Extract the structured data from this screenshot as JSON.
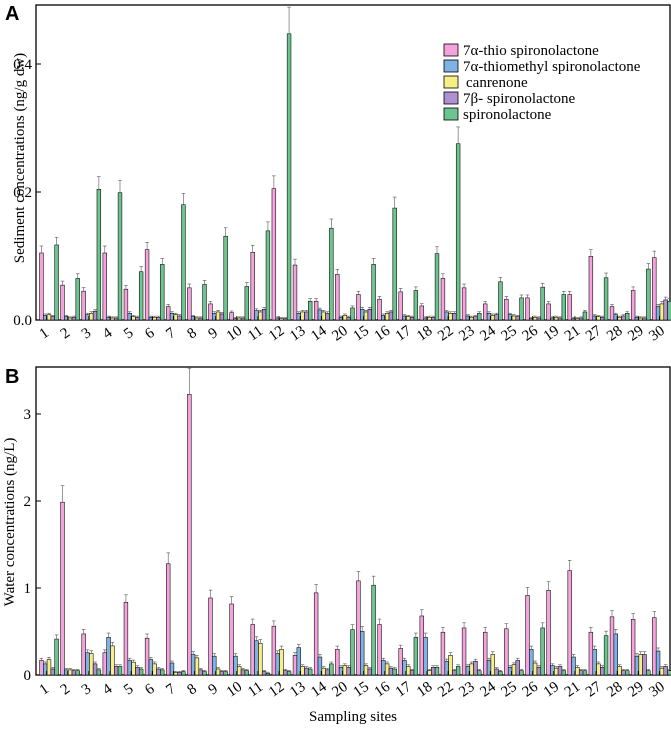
{
  "chart_data": [
    {
      "panel_label": "A",
      "type": "bar",
      "ylabel": "Sediment concentrations (ng/g dw)",
      "xlabel": "",
      "ylim": [
        0,
        0.47
      ],
      "yticks": [
        0.0,
        0.2,
        0.4
      ],
      "ytick_labels": [
        "0.0",
        "0.2",
        "0.4"
      ],
      "grid": false,
      "legend_position": "top-right",
      "categories": [
        "1",
        "2",
        "3",
        "4",
        "5",
        "6",
        "7",
        "8",
        "9",
        "10",
        "11",
        "12",
        "13",
        "14",
        "20",
        "15",
        "16",
        "17",
        "18",
        "22",
        "23",
        "24",
        "25",
        "26",
        "19",
        "21",
        "27",
        "28",
        "29",
        "30"
      ],
      "series": [
        {
          "name": "7α-thio spironolactone",
          "color": "#f4a3dd",
          "values": [
            0.1,
            0.052,
            0.043,
            0.1,
            0.046,
            0.105,
            0.02,
            0.048,
            0.024,
            0.011,
            0.101,
            0.196,
            0.082,
            0.028,
            0.068,
            0.038,
            0.031,
            0.042,
            0.021,
            0.062,
            0.048,
            0.024,
            0.031,
            0.033,
            0.024,
            0.038,
            0.095,
            0.02,
            0.044,
            0.093
          ]
        },
        {
          "name": "7α-thiomethyl spironolactone",
          "color": "#7fb2e5",
          "values": [
            0.007,
            0.005,
            0.008,
            0.004,
            0.01,
            0.004,
            0.01,
            0.005,
            0.01,
            0.002,
            0.014,
            0.003,
            0.01,
            0.015,
            0.004,
            0.016,
            0.007,
            0.006,
            0.003,
            0.012,
            0.006,
            0.01,
            0.008,
            0.002,
            0.003,
            0.002,
            0.006,
            0.008,
            0.004,
            0.02
          ]
        },
        {
          "name": "canrenone",
          "color": "#f7ee86",
          "values": [
            0.008,
            0.003,
            0.01,
            0.003,
            0.005,
            0.004,
            0.008,
            0.003,
            0.012,
            0.003,
            0.012,
            0.002,
            0.012,
            0.012,
            0.007,
            0.012,
            0.01,
            0.005,
            0.004,
            0.01,
            0.004,
            0.007,
            0.006,
            0.004,
            0.004,
            0.002,
            0.005,
            0.004,
            0.003,
            0.024
          ]
        },
        {
          "name": "7β- spironolactone",
          "color": "#b190d2",
          "values": [
            0.005,
            0.004,
            0.013,
            0.003,
            0.004,
            0.004,
            0.006,
            0.003,
            0.009,
            0.003,
            0.016,
            0.002,
            0.012,
            0.01,
            0.004,
            0.016,
            0.012,
            0.004,
            0.004,
            0.01,
            0.005,
            0.008,
            0.005,
            0.003,
            0.003,
            0.003,
            0.004,
            0.006,
            0.003,
            0.03
          ]
        },
        {
          "name": "spironolactone",
          "color": "#6ec48e",
          "values": [
            0.112,
            0.062,
            0.195,
            0.19,
            0.072,
            0.083,
            0.172,
            0.053,
            0.125,
            0.05,
            0.133,
            0.427,
            0.028,
            0.137,
            0.018,
            0.083,
            0.167,
            0.044,
            0.099,
            0.263,
            0.01,
            0.057,
            0.033,
            0.049,
            0.038,
            0.012,
            0.063,
            0.01,
            0.076,
            0.028
          ]
        }
      ]
    },
    {
      "panel_label": "B",
      "type": "bar",
      "ylabel": "Water concentrations (ng/L)",
      "xlabel": "Sampling sites",
      "ylim": [
        0,
        3.6
      ],
      "yticks": [
        0,
        1,
        2,
        3
      ],
      "ytick_labels": [
        "0",
        "1",
        "2",
        "3"
      ],
      "grid": false,
      "categories": [
        "1",
        "2",
        "3",
        "4",
        "5",
        "6",
        "7",
        "8",
        "9",
        "10",
        "11",
        "12",
        "13",
        "14",
        "20",
        "15",
        "16",
        "17",
        "18",
        "22",
        "23",
        "24",
        "25",
        "26",
        "19",
        "21",
        "27",
        "28",
        "29",
        "30"
      ],
      "series": [
        {
          "name": "7α-thio spironolactone",
          "color": "#f4a3dd",
          "values": [
            0.17,
            2.02,
            0.48,
            0.26,
            0.85,
            0.43,
            1.3,
            3.28,
            0.9,
            0.83,
            0.59,
            0.57,
            0.23,
            0.96,
            0.3,
            1.1,
            0.59,
            0.31,
            0.69,
            0.5,
            0.55,
            0.5,
            0.54,
            0.93,
            0.99,
            1.22,
            0.5,
            0.68,
            0.65,
            0.67
          ]
        },
        {
          "name": "7α-thiomethyl spironolactone",
          "color": "#7fb2e5",
          "values": [
            0.13,
            0.06,
            0.26,
            0.44,
            0.17,
            0.18,
            0.14,
            0.24,
            0.22,
            0.22,
            0.4,
            0.25,
            0.32,
            0.21,
            0.09,
            0.51,
            0.17,
            0.17,
            0.44,
            0.16,
            0.1,
            0.17,
            0.09,
            0.3,
            0.11,
            0.21,
            0.3,
            0.48,
            0.22,
            0.28
          ]
        },
        {
          "name": "canrenone",
          "color": "#f7ee86",
          "values": [
            0.18,
            0.06,
            0.25,
            0.34,
            0.15,
            0.13,
            0.03,
            0.2,
            0.07,
            0.1,
            0.37,
            0.3,
            0.1,
            0.08,
            0.11,
            0.11,
            0.13,
            0.1,
            0.05,
            0.23,
            0.13,
            0.24,
            0.12,
            0.14,
            0.08,
            0.09,
            0.13,
            0.1,
            0.24,
            0.08
          ]
        },
        {
          "name": "7β- spironolactone",
          "color": "#b190d2",
          "values": [
            0.07,
            0.05,
            0.13,
            0.1,
            0.09,
            0.07,
            0.03,
            0.06,
            0.04,
            0.06,
            0.04,
            0.05,
            0.08,
            0.06,
            0.09,
            0.07,
            0.08,
            0.05,
            0.09,
            0.05,
            0.16,
            0.07,
            0.17,
            0.09,
            0.1,
            0.05,
            0.09,
            0.05,
            0.24,
            0.1
          ]
        },
        {
          "name": "spironolactone",
          "color": "#6ec48e",
          "values": [
            0.42,
            0.05,
            0.06,
            0.1,
            0.07,
            0.06,
            0.04,
            0.04,
            0.04,
            0.05,
            0.02,
            0.04,
            0.07,
            0.13,
            0.53,
            1.05,
            0.07,
            0.44,
            0.09,
            0.1,
            0.05,
            0.04,
            0.05,
            0.55,
            0.05,
            0.05,
            0.46,
            0.05,
            0.05,
            0.05
          ]
        }
      ]
    }
  ]
}
